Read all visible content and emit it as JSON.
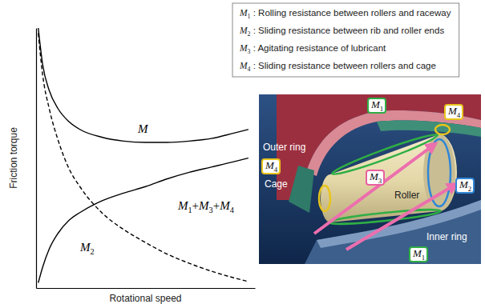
{
  "chart_data": {
    "type": "line",
    "x_label": "Rotational speed",
    "y_label": "Friction torque",
    "x": [
      0.1,
      0.3,
      0.6,
      1,
      1.5,
      2,
      3,
      4,
      5,
      6,
      7,
      8,
      9,
      9.7
    ],
    "xlim": [
      0,
      10
    ],
    "ylim": [
      0,
      10
    ],
    "tick_labels": false,
    "series": [
      {
        "name": "M",
        "color": "#000000",
        "line_style": "solid",
        "values": [
          10.0,
          8.6,
          7.6,
          6.9,
          6.4,
          6.1,
          5.8,
          5.65,
          5.6,
          5.6,
          5.65,
          5.75,
          5.95,
          6.1
        ]
      },
      {
        "name": "M1+M3+M4",
        "color": "#000000",
        "line_style": "solid",
        "values": [
          0.2,
          0.8,
          1.5,
          2.1,
          2.6,
          2.9,
          3.35,
          3.65,
          3.9,
          4.2,
          4.45,
          4.65,
          4.85,
          5.0
        ]
      },
      {
        "name": "M2",
        "color": "#000000",
        "line_style": "dashed",
        "values": [
          9.8,
          8.2,
          6.9,
          5.7,
          4.6,
          3.9,
          2.9,
          2.25,
          1.75,
          1.3,
          0.95,
          0.65,
          0.4,
          0.25
        ]
      }
    ]
  },
  "key": {
    "entries": [
      "M1 : Rolling resistance between rollers and raceway",
      "M2 : Sliding resistance between rib and roller ends",
      "M3 : Agitating resistance of lubricant",
      "M4 : Sliding resistance between rollers and cage"
    ]
  },
  "diagram": {
    "part_labels": [
      "Outer ring",
      "Cage",
      "Roller",
      "Inner ring"
    ],
    "markers": [
      {
        "label": "M1",
        "color": "#2fae45"
      },
      {
        "label": "M4",
        "color": "#e8c41c"
      },
      {
        "label": "M4",
        "color": "#e8c41c"
      },
      {
        "label": "M3",
        "color": "#e8609e"
      },
      {
        "label": "M2",
        "color": "#2f86d6"
      },
      {
        "label": "M1",
        "color": "#2fae45"
      }
    ]
  }
}
